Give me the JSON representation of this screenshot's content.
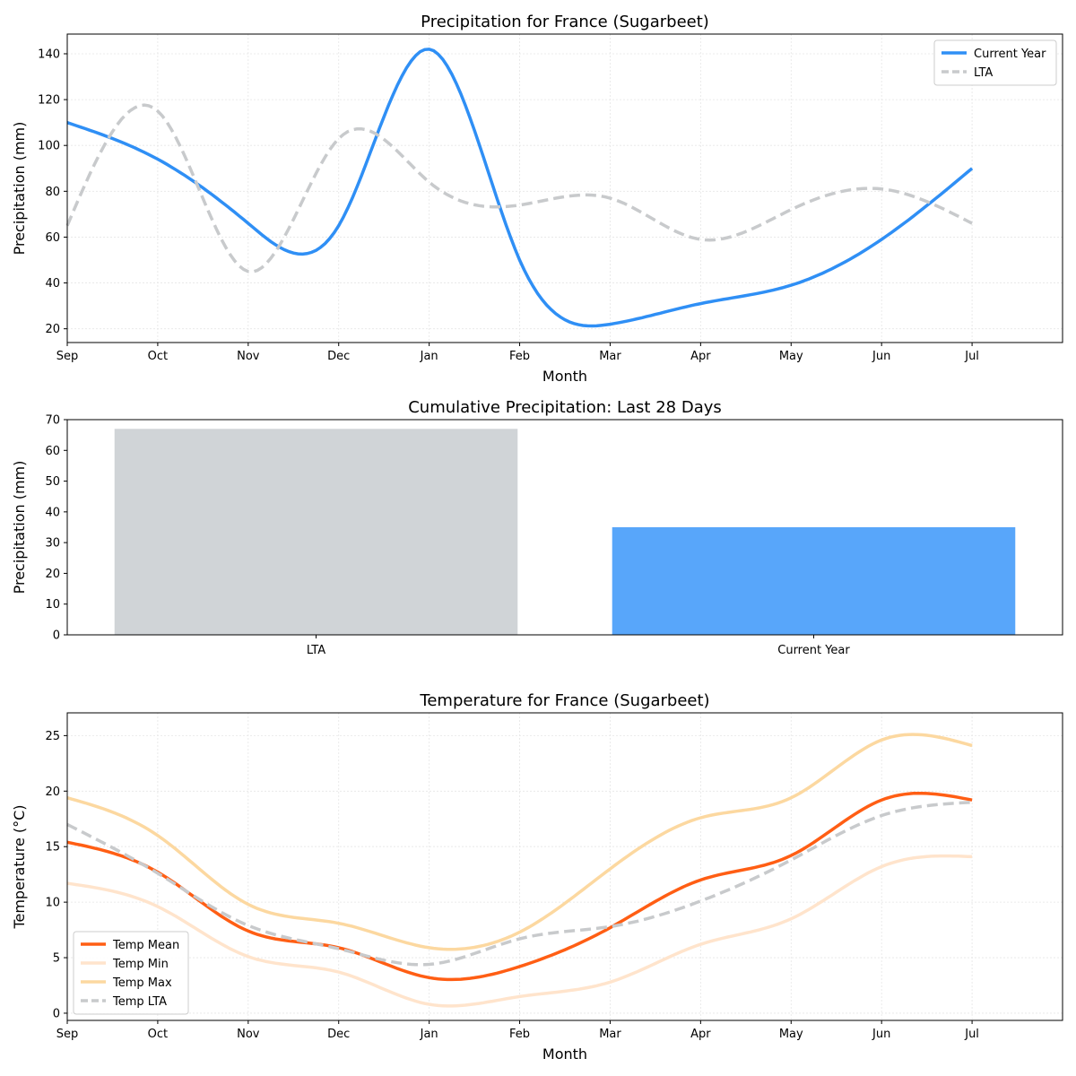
{
  "chart_data": [
    {
      "type": "line",
      "title": "Precipitation for France (Sugarbeet)",
      "xlabel": "Month",
      "ylabel": "Precipitation (mm)",
      "categories": [
        "Sep",
        "Oct",
        "Nov",
        "Dec",
        "Jan",
        "Feb",
        "Mar",
        "Apr",
        "May",
        "Jun",
        "Jul"
      ],
      "xlim": [
        0,
        11
      ],
      "ylim": [
        14,
        148.6
      ],
      "yticks": [
        20,
        40,
        60,
        80,
        100,
        120,
        140
      ],
      "grid": true,
      "legend": "top-right",
      "series": [
        {
          "name": "Current Year",
          "color": "#2f8ff5",
          "dash": false,
          "values": [
            110,
            94,
            66,
            65,
            142,
            50,
            22,
            31,
            39,
            59,
            90
          ]
        },
        {
          "name": "LTA",
          "color": "#c8cacc",
          "dash": true,
          "values": [
            65,
            115,
            45,
            103,
            84,
            74,
            77,
            59,
            72,
            81,
            66
          ]
        }
      ]
    },
    {
      "type": "bar",
      "title": "Cumulative Precipitation: Last 28 Days",
      "xlabel": "",
      "ylabel": "Precipitation (mm)",
      "categories": [
        "LTA",
        "Current Year"
      ],
      "values": [
        67,
        35
      ],
      "colors": [
        "#d0d4d7",
        "#58a6fa"
      ],
      "ylim": [
        0,
        70
      ],
      "yticks": [
        0,
        10,
        20,
        30,
        40,
        50,
        60,
        70
      ]
    },
    {
      "type": "line",
      "title": "Temperature for France (Sugarbeet)",
      "xlabel": "Month",
      "ylabel": "Temperature (°C)",
      "categories": [
        "Sep",
        "Oct",
        "Nov",
        "Dec",
        "Jan",
        "Feb",
        "Mar",
        "Apr",
        "May",
        "Jun",
        "Jul"
      ],
      "xlim": [
        0,
        11
      ],
      "ylim": [
        -0.65,
        27.05
      ],
      "yticks": [
        0,
        5,
        10,
        15,
        20,
        25
      ],
      "grid": true,
      "legend": "bottom-left",
      "series": [
        {
          "name": "Temp Mean",
          "color": "#ff5e14",
          "dash": false,
          "values": [
            15.4,
            12.7,
            7.4,
            5.9,
            3.2,
            4.2,
            7.7,
            12.0,
            14.2,
            19.2,
            19.2
          ]
        },
        {
          "name": "Temp Min",
          "color": "#ffe4cc",
          "dash": false,
          "values": [
            11.7,
            9.6,
            5.1,
            3.7,
            0.8,
            1.5,
            2.8,
            6.2,
            8.5,
            13.2,
            14.1
          ]
        },
        {
          "name": "Temp Max",
          "color": "#fcd8a0",
          "dash": false,
          "values": [
            19.4,
            16.0,
            9.8,
            8.1,
            5.9,
            7.3,
            13.0,
            17.6,
            19.4,
            24.6,
            24.1
          ]
        },
        {
          "name": "Temp LTA",
          "color": "#c8cacc",
          "dash": true,
          "values": [
            17.0,
            12.6,
            7.9,
            5.8,
            4.4,
            6.7,
            7.8,
            10.1,
            13.8,
            17.8,
            19.0
          ]
        }
      ]
    }
  ]
}
